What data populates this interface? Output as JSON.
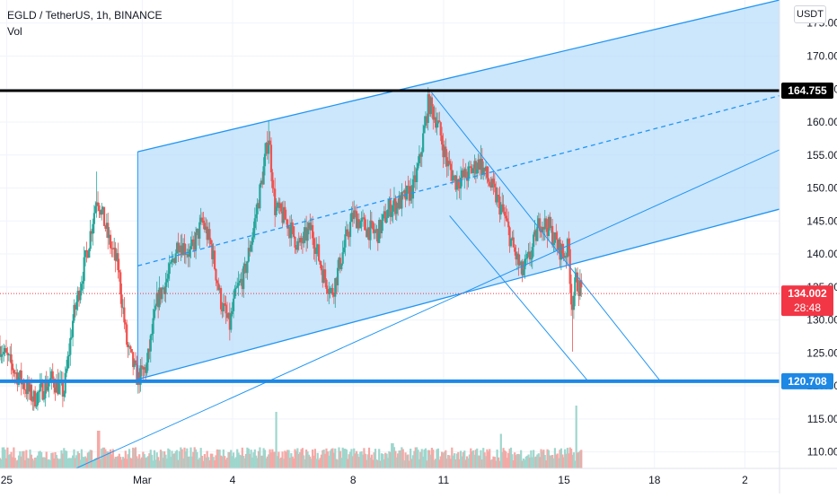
{
  "header": {
    "symbol_line": "EGLD / TetherUS, 1h, BINANCE",
    "indicator": "Vol",
    "currency": "USDT"
  },
  "colors": {
    "up": "#26a69a",
    "down": "#ef5350",
    "up_soft": "#9fd6cd",
    "down_soft": "#f4a9a6",
    "channel": "#2196f3",
    "channel_fill": "#bbdefb",
    "support": "#1e88e5",
    "resistance": "#000000",
    "last_price": "#f23645"
  },
  "chart_data": {
    "type": "candlestick",
    "symbol": "EGLD / TetherUS",
    "interval": "1h",
    "exchange": "BINANCE",
    "y_axis": {
      "ticks": [
        110,
        115,
        120,
        125,
        130,
        135,
        140,
        145,
        150,
        155,
        160,
        165,
        170,
        175
      ],
      "tick_labels": [
        "110.000",
        "115.000",
        "120.000",
        "125.000",
        "130.000",
        "135.000",
        "140.000",
        "145.000",
        "150.000",
        "155.000",
        "160.000",
        "165.000",
        "170.000",
        "175.000"
      ],
      "range": [
        107.5,
        178.5
      ]
    },
    "x_axis": {
      "ticks": [
        {
          "label": "25",
          "day": -4.5
        },
        {
          "label": "Mar",
          "day": 0
        },
        {
          "label": "4",
          "day": 3
        },
        {
          "label": "8",
          "day": 7
        },
        {
          "label": "11",
          "day": 10
        },
        {
          "label": "15",
          "day": 14
        },
        {
          "label": "18",
          "day": 17
        },
        {
          "label": "2",
          "day": 20
        }
      ],
      "range": [
        -4.72,
        21.15
      ]
    },
    "price_path": [
      [
        -4.72,
        126
      ],
      [
        -4.2,
        122
      ],
      [
        -3.6,
        118
      ],
      [
        -3.0,
        121
      ],
      [
        -2.6,
        119
      ],
      [
        -2.3,
        130
      ],
      [
        -1.8,
        141
      ],
      [
        -1.5,
        149
      ],
      [
        -1.1,
        142
      ],
      [
        -0.8,
        138
      ],
      [
        -0.5,
        126
      ],
      [
        -0.15,
        121
      ],
      [
        0.15,
        123
      ],
      [
        0.5,
        133
      ],
      [
        0.9,
        137
      ],
      [
        1.2,
        142
      ],
      [
        1.6,
        140
      ],
      [
        2.0,
        145
      ],
      [
        2.3,
        141
      ],
      [
        2.6,
        133
      ],
      [
        2.9,
        129
      ],
      [
        3.1,
        134
      ],
      [
        3.4,
        137
      ],
      [
        3.7,
        144
      ],
      [
        4.0,
        152
      ],
      [
        4.2,
        158
      ],
      [
        4.4,
        147
      ],
      [
        4.8,
        145
      ],
      [
        5.2,
        141
      ],
      [
        5.6,
        144
      ],
      [
        6.0,
        137
      ],
      [
        6.3,
        134
      ],
      [
        6.7,
        141
      ],
      [
        7.0,
        146
      ],
      [
        7.4,
        144
      ],
      [
        7.8,
        143
      ],
      [
        8.2,
        147
      ],
      [
        8.6,
        148
      ],
      [
        9.0,
        150
      ],
      [
        9.2,
        154
      ],
      [
        9.5,
        163
      ],
      [
        9.8,
        160
      ],
      [
        10.1,
        154
      ],
      [
        10.4,
        151
      ],
      [
        10.8,
        152
      ],
      [
        11.2,
        154
      ],
      [
        11.6,
        150
      ],
      [
        12.0,
        146
      ],
      [
        12.3,
        141
      ],
      [
        12.6,
        137
      ],
      [
        12.9,
        140
      ],
      [
        13.2,
        145
      ],
      [
        13.5,
        144
      ],
      [
        13.8,
        141
      ],
      [
        14.0,
        140
      ],
      [
        14.15,
        141
      ],
      [
        14.25,
        132
      ],
      [
        14.4,
        136
      ],
      [
        14.6,
        134.2
      ]
    ],
    "resistance_line": {
      "price": 164.755,
      "label": "164.755",
      "color": "#000000"
    },
    "support_line": {
      "price": 120.708,
      "label": "120.708",
      "color": "#1e88e5"
    },
    "last_price": {
      "price": 134.002,
      "label": "134.002",
      "countdown": "28:48",
      "color": "#f23645"
    },
    "ascending_channel": {
      "lower": [
        [
          -0.15,
          121
        ],
        [
          21.15,
          146.8
        ]
      ],
      "middle": [
        [
          -0.15,
          138.2
        ],
        [
          21.15,
          164
        ]
      ],
      "upper": [
        [
          -0.15,
          155.5
        ],
        [
          21.15,
          178.5
        ]
      ],
      "shaded": true
    },
    "trend_line": [
      [
        -2.2,
        107.5
      ],
      [
        21.15,
        155.8
      ]
    ],
    "descending_channel": {
      "upper": [
        [
          9.6,
          164.5
        ],
        [
          17.2,
          120.7
        ]
      ],
      "lower": [
        [
          10.2,
          145.8
        ],
        [
          14.8,
          120.7
        ]
      ]
    },
    "volume": {
      "note": "hourly volume bars along the bottom of the pane",
      "spikes": [
        [
          4.45,
          0.9
        ],
        [
          14.4,
          1.0
        ],
        [
          11.9,
          0.55
        ],
        [
          -1.45,
          0.6
        ],
        [
          8.3,
          0.4
        ]
      ]
    }
  }
}
